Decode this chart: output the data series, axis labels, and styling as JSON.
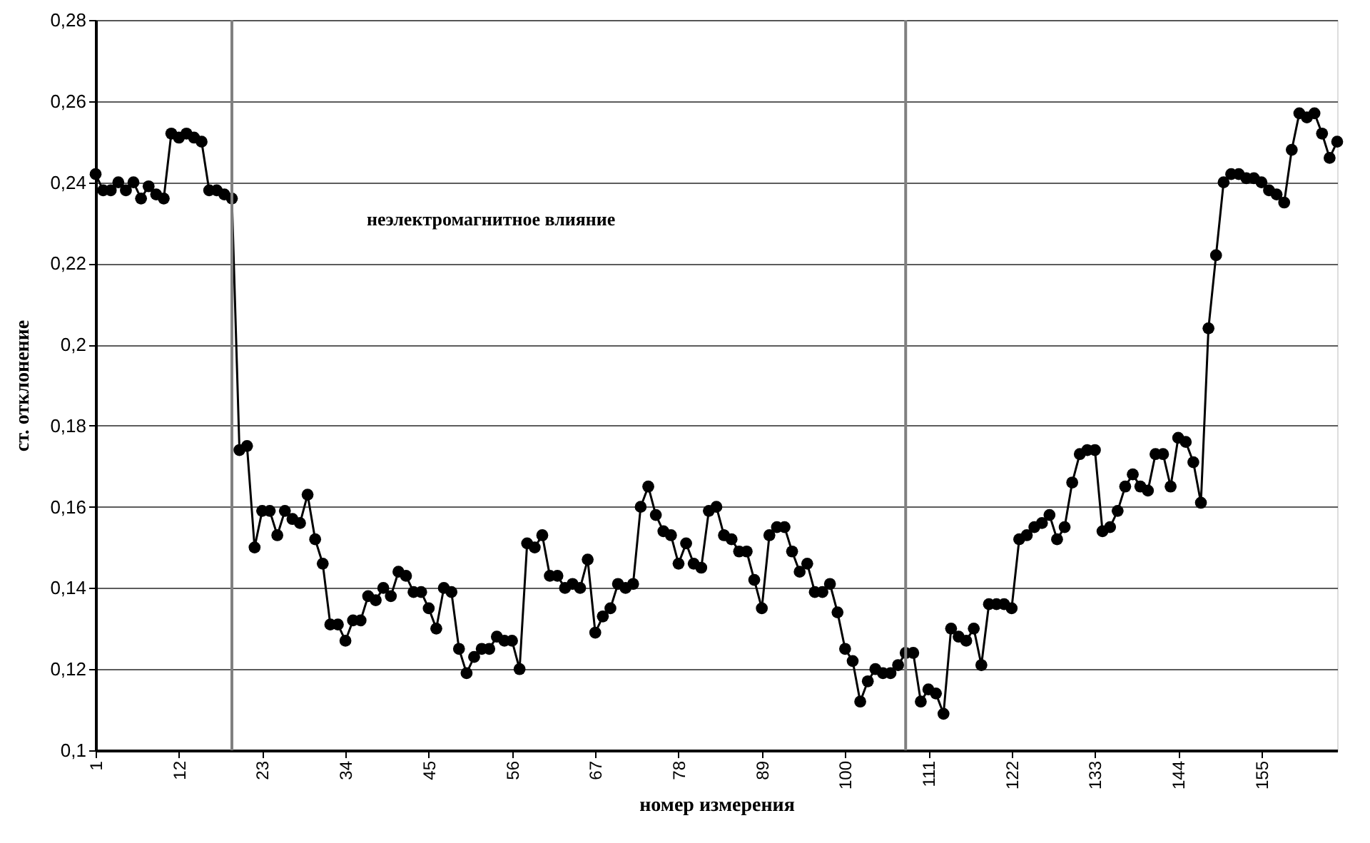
{
  "chart_data": {
    "type": "line",
    "xlabel": "номер измерения",
    "ylabel": "ст. отклонение",
    "annotations": [
      "неэлектромагнитное влияние"
    ],
    "x": [
      1,
      2,
      3,
      4,
      5,
      6,
      7,
      8,
      9,
      10,
      11,
      12,
      13,
      14,
      15,
      16,
      17,
      18,
      19,
      20,
      21,
      22,
      23,
      24,
      25,
      26,
      27,
      28,
      29,
      30,
      31,
      32,
      33,
      34,
      35,
      36,
      37,
      38,
      39,
      40,
      41,
      42,
      43,
      44,
      45,
      46,
      47,
      48,
      49,
      50,
      51,
      52,
      53,
      54,
      55,
      56,
      57,
      58,
      59,
      60,
      61,
      62,
      63,
      64,
      65,
      66,
      67,
      68,
      69,
      70,
      71,
      72,
      73,
      74,
      75,
      76,
      77,
      78,
      79,
      80,
      81,
      82,
      83,
      84,
      85,
      86,
      87,
      88,
      89,
      90,
      91,
      92,
      93,
      94,
      95,
      96,
      97,
      98,
      99,
      100,
      101,
      102,
      103,
      104,
      105,
      106,
      107,
      108,
      109,
      110,
      111,
      112,
      113,
      114,
      115,
      116,
      117,
      118,
      119,
      120,
      121,
      122,
      123,
      124,
      125,
      126,
      127,
      128,
      129,
      130,
      131,
      132,
      133,
      134,
      135,
      136,
      137,
      138,
      139,
      140,
      141,
      142,
      143,
      144,
      145,
      146,
      147,
      148,
      149,
      150,
      151,
      152,
      153,
      154,
      155,
      156,
      157,
      158,
      159,
      160,
      161,
      162,
      163,
      164,
      165
    ],
    "series": [
      {
        "color": "#000000",
        "values": [
          0.242,
          0.238,
          0.238,
          0.24,
          0.238,
          0.24,
          0.236,
          0.239,
          0.237,
          0.236,
          0.252,
          0.251,
          0.252,
          0.251,
          0.25,
          0.238,
          0.238,
          0.237,
          0.236,
          0.174,
          0.175,
          0.15,
          0.159,
          0.159,
          0.153,
          0.159,
          0.157,
          0.156,
          0.163,
          0.152,
          0.146,
          0.131,
          0.131,
          0.127,
          0.132,
          0.132,
          0.138,
          0.137,
          0.14,
          0.138,
          0.144,
          0.143,
          0.139,
          0.139,
          0.135,
          0.13,
          0.14,
          0.139,
          0.125,
          0.119,
          0.123,
          0.125,
          0.125,
          0.128,
          0.127,
          0.127,
          0.12,
          0.151,
          0.15,
          0.153,
          0.143,
          0.143,
          0.14,
          0.141,
          0.14,
          0.147,
          0.129,
          0.133,
          0.135,
          0.141,
          0.14,
          0.141,
          0.16,
          0.165,
          0.158,
          0.154,
          0.153,
          0.146,
          0.151,
          0.146,
          0.145,
          0.159,
          0.16,
          0.153,
          0.152,
          0.149,
          0.149,
          0.142,
          0.135,
          0.153,
          0.155,
          0.155,
          0.149,
          0.144,
          0.146,
          0.139,
          0.139,
          0.141,
          0.134,
          0.125,
          0.122,
          0.112,
          0.117,
          0.12,
          0.119,
          0.119,
          0.121,
          0.124,
          0.124,
          0.112,
          0.115,
          0.114,
          0.109,
          0.13,
          0.128,
          0.127,
          0.13,
          0.121,
          0.136,
          0.136,
          0.136,
          0.135,
          0.152,
          0.153,
          0.155,
          0.156,
          0.158,
          0.152,
          0.155,
          0.166,
          0.173,
          0.174,
          0.174,
          0.154,
          0.155,
          0.159,
          0.165,
          0.168,
          0.165,
          0.164,
          0.173,
          0.173,
          0.165,
          0.177,
          0.176,
          0.171,
          0.161,
          0.204,
          0.222,
          0.24,
          0.242,
          0.242,
          0.241,
          0.241,
          0.24,
          0.238,
          0.237,
          0.235,
          0.248,
          0.257,
          0.256,
          0.257,
          0.252,
          0.246,
          0.25
        ]
      }
    ],
    "xlim": [
      1,
      165
    ],
    "xticks": [
      1,
      12,
      23,
      34,
      45,
      56,
      67,
      78,
      89,
      100,
      111,
      122,
      133,
      144,
      155
    ],
    "ylim": [
      0.1,
      0.28
    ],
    "yticks": [
      {
        "value": 0.1,
        "label": "0,1"
      },
      {
        "value": 0.12,
        "label": "0,12"
      },
      {
        "value": 0.14,
        "label": "0,14"
      },
      {
        "value": 0.16,
        "label": "0,16"
      },
      {
        "value": 0.18,
        "label": "0,18"
      },
      {
        "value": 0.2,
        "label": "0,2"
      },
      {
        "value": 0.22,
        "label": "0,22"
      },
      {
        "value": 0.24,
        "label": "0,24"
      },
      {
        "value": 0.26,
        "label": "0,26"
      },
      {
        "value": 0.28,
        "label": "0,28"
      }
    ],
    "ref_lines": [
      {
        "axis": "x",
        "value": 19,
        "label": null,
        "color": "#808080"
      },
      {
        "axis": "x",
        "value": 108,
        "label": null,
        "color": "#808080"
      }
    ],
    "grid": "y",
    "marker": "circle",
    "line_style": "solid"
  }
}
